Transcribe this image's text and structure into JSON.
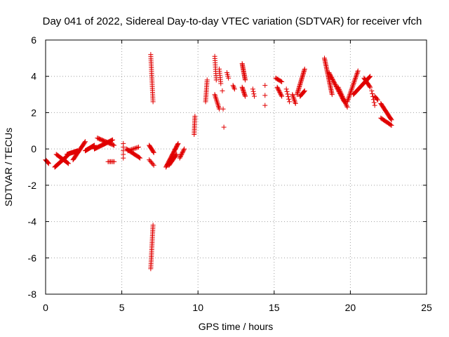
{
  "chart_data": {
    "type": "scatter",
    "title": "Day 041 of 2022, Sidereal Day-to-day VTEC variation (SDTVAR) for receiver vfch",
    "xlabel": "GPS time / hours",
    "ylabel": "SDTVAR / TECUs",
    "xlim": [
      0,
      25
    ],
    "ylim": [
      -8,
      6
    ],
    "xticks": [
      0,
      5,
      10,
      15,
      20,
      25
    ],
    "yticks": [
      -8,
      -6,
      -4,
      -2,
      0,
      2,
      4,
      6
    ],
    "grid": true,
    "marker": "+",
    "color": "#e00000",
    "series": [
      {
        "name": "SDTVAR",
        "segments": [
          {
            "x0": 0.0,
            "y0": -0.6,
            "x1": 0.2,
            "y1": -0.8,
            "n": 8
          },
          {
            "x0": 0.6,
            "y0": -1.0,
            "x1": 1.4,
            "y1": -0.4,
            "n": 26
          },
          {
            "x0": 0.7,
            "y0": -0.3,
            "x1": 1.5,
            "y1": -0.8,
            "n": 18
          },
          {
            "x0": 1.4,
            "y0": -0.3,
            "x1": 2.1,
            "y1": -0.1,
            "n": 22
          },
          {
            "x0": 1.8,
            "y0": -0.6,
            "x1": 2.6,
            "y1": 0.4,
            "n": 24
          },
          {
            "x0": 2.6,
            "y0": -0.1,
            "x1": 3.2,
            "y1": 0.2,
            "n": 18
          },
          {
            "x0": 3.2,
            "y0": 0.0,
            "x1": 4.4,
            "y1": 0.5,
            "n": 28
          },
          {
            "x0": 3.4,
            "y0": 0.6,
            "x1": 4.5,
            "y1": 0.2,
            "n": 20
          },
          {
            "x0": 4.1,
            "y0": -0.7,
            "x1": 4.5,
            "y1": -0.7,
            "n": 6
          },
          {
            "x0": 5.1,
            "y0": 0.3,
            "x1": 5.1,
            "y1": -0.5,
            "n": 5
          },
          {
            "x0": 5.3,
            "y0": 0.0,
            "x1": 6.2,
            "y1": -0.5,
            "n": 18
          },
          {
            "x0": 5.4,
            "y0": -0.1,
            "x1": 6.1,
            "y1": 0.1,
            "n": 10
          },
          {
            "x0": 6.8,
            "y0": 0.2,
            "x1": 7.1,
            "y1": -0.2,
            "n": 10
          },
          {
            "x0": 6.8,
            "y0": -0.6,
            "x1": 7.1,
            "y1": -0.9,
            "n": 6
          },
          {
            "x0": 6.9,
            "y0": 5.2,
            "x1": 7.05,
            "y1": 2.6,
            "n": 26
          },
          {
            "x0": 6.9,
            "y0": -6.6,
            "x1": 7.05,
            "y1": -4.2,
            "n": 26
          },
          {
            "x0": 7.9,
            "y0": -1.0,
            "x1": 8.7,
            "y1": 0.3,
            "n": 30
          },
          {
            "x0": 8.1,
            "y0": -0.9,
            "x1": 8.6,
            "y1": -0.3,
            "n": 14
          },
          {
            "x0": 8.8,
            "y0": -0.5,
            "x1": 9.1,
            "y1": 0.0,
            "n": 10
          },
          {
            "x0": 9.75,
            "y0": 0.8,
            "x1": 9.8,
            "y1": 1.8,
            "n": 12
          },
          {
            "x0": 10.5,
            "y0": 2.6,
            "x1": 10.6,
            "y1": 3.8,
            "n": 14
          },
          {
            "x0": 11.1,
            "y0": 5.1,
            "x1": 11.2,
            "y1": 3.8,
            "n": 12
          },
          {
            "x0": 11.1,
            "y0": 3.0,
            "x1": 11.4,
            "y1": 2.2,
            "n": 12
          },
          {
            "x0": 11.4,
            "y0": 4.4,
            "x1": 11.5,
            "y1": 3.6,
            "n": 8
          },
          {
            "x0": 11.6,
            "y0": 3.2,
            "x1": 11.7,
            "y1": 1.2,
            "n": 3
          },
          {
            "x0": 11.9,
            "y0": 4.2,
            "x1": 12.0,
            "y1": 3.9,
            "n": 4
          },
          {
            "x0": 12.3,
            "y0": 3.5,
            "x1": 12.4,
            "y1": 3.3,
            "n": 4
          },
          {
            "x0": 12.9,
            "y0": 4.7,
            "x1": 13.1,
            "y1": 3.8,
            "n": 16
          },
          {
            "x0": 12.9,
            "y0": 3.4,
            "x1": 13.1,
            "y1": 2.9,
            "n": 10
          },
          {
            "x0": 13.6,
            "y0": 3.3,
            "x1": 13.7,
            "y1": 2.9,
            "n": 4
          },
          {
            "x0": 14.4,
            "y0": 3.5,
            "x1": 14.4,
            "y1": 2.4,
            "n": 3
          },
          {
            "x0": 15.1,
            "y0": 3.9,
            "x1": 15.5,
            "y1": 3.7,
            "n": 8
          },
          {
            "x0": 15.2,
            "y0": 3.4,
            "x1": 15.5,
            "y1": 2.9,
            "n": 10
          },
          {
            "x0": 15.8,
            "y0": 3.3,
            "x1": 16.0,
            "y1": 2.6,
            "n": 6
          },
          {
            "x0": 16.2,
            "y0": 3.0,
            "x1": 16.4,
            "y1": 2.5,
            "n": 8
          },
          {
            "x0": 16.5,
            "y0": 3.0,
            "x1": 17.0,
            "y1": 4.4,
            "n": 24
          },
          {
            "x0": 16.7,
            "y0": 2.9,
            "x1": 17.0,
            "y1": 3.2,
            "n": 10
          },
          {
            "x0": 18.3,
            "y0": 5.0,
            "x1": 18.8,
            "y1": 3.0,
            "n": 30
          },
          {
            "x0": 18.6,
            "y0": 4.2,
            "x1": 19.6,
            "y1": 2.6,
            "n": 30
          },
          {
            "x0": 19.2,
            "y0": 3.4,
            "x1": 19.8,
            "y1": 2.3,
            "n": 18
          },
          {
            "x0": 19.8,
            "y0": 2.6,
            "x1": 20.5,
            "y1": 4.3,
            "n": 26
          },
          {
            "x0": 20.2,
            "y0": 3.0,
            "x1": 21.3,
            "y1": 4.0,
            "n": 30
          },
          {
            "x0": 20.9,
            "y0": 3.9,
            "x1": 21.3,
            "y1": 3.4,
            "n": 12
          },
          {
            "x0": 21.4,
            "y0": 3.2,
            "x1": 21.6,
            "y1": 2.4,
            "n": 6
          },
          {
            "x0": 21.6,
            "y0": 2.9,
            "x1": 21.8,
            "y1": 2.7,
            "n": 5
          },
          {
            "x0": 22.0,
            "y0": 2.5,
            "x1": 22.7,
            "y1": 1.6,
            "n": 22
          },
          {
            "x0": 22.0,
            "y0": 1.7,
            "x1": 22.7,
            "y1": 1.3,
            "n": 14
          }
        ]
      }
    ]
  }
}
